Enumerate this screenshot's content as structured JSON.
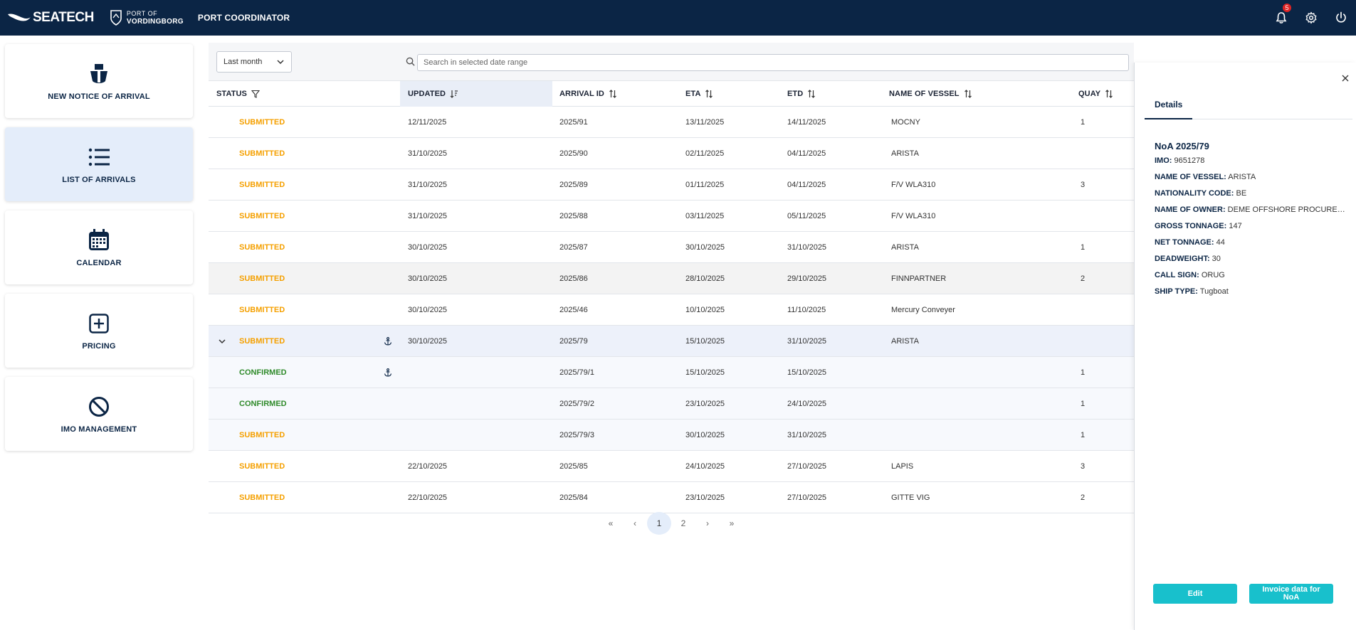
{
  "header": {
    "brand": "SEATECH",
    "port_logo_line1": "PORT OF",
    "port_logo_line2": "VORDINGBORG",
    "app_title": "PORT COORDINATOR",
    "notifications_count": "5",
    "icons": [
      "bell-icon",
      "gear-icon",
      "power-icon"
    ]
  },
  "sidebar": {
    "items": [
      {
        "label": "NEW NOTICE OF ARRIVAL",
        "icon": "ship-icon",
        "active": false
      },
      {
        "label": "LIST OF ARRIVALS",
        "icon": "list-icon",
        "active": true
      },
      {
        "label": "CALENDAR",
        "icon": "calendar-icon",
        "active": false
      },
      {
        "label": "PRICING",
        "icon": "plus-square-icon",
        "active": false
      },
      {
        "label": "IMO MANAGEMENT",
        "icon": "ban-icon",
        "active": false
      }
    ]
  },
  "toolbar": {
    "date_range": "Last month",
    "search_placeholder": "Search in selected date range"
  },
  "table": {
    "headers": {
      "status": "STATUS",
      "updated": "UPDATED",
      "arrival_id": "ARRIVAL ID",
      "eta": "ETA",
      "etd": "ETD",
      "vessel": "NAME OF VESSEL",
      "quay": "QUAY"
    },
    "rows": [
      {
        "status": "SUBMITTED",
        "updated": "12/11/2025",
        "arrival_id": "2025/91",
        "eta": "13/11/2025",
        "etd": "14/11/2025",
        "vessel": "MOCNY",
        "quay": "1"
      },
      {
        "status": "SUBMITTED",
        "updated": "31/10/2025",
        "arrival_id": "2025/90",
        "eta": "02/11/2025",
        "etd": "04/11/2025",
        "vessel": "ARISTA",
        "quay": ""
      },
      {
        "status": "SUBMITTED",
        "updated": "31/10/2025",
        "arrival_id": "2025/89",
        "eta": "01/11/2025",
        "etd": "04/11/2025",
        "vessel": "F/V WLA310",
        "quay": "3"
      },
      {
        "status": "SUBMITTED",
        "updated": "31/10/2025",
        "arrival_id": "2025/88",
        "eta": "03/11/2025",
        "etd": "05/11/2025",
        "vessel": "F/V WLA310",
        "quay": ""
      },
      {
        "status": "SUBMITTED",
        "updated": "30/10/2025",
        "arrival_id": "2025/87",
        "eta": "30/10/2025",
        "etd": "31/10/2025",
        "vessel": "ARISTA",
        "quay": "1"
      },
      {
        "status": "SUBMITTED",
        "updated": "30/10/2025",
        "arrival_id": "2025/86",
        "eta": "28/10/2025",
        "etd": "29/10/2025",
        "vessel": "FINNPARTNER",
        "quay": "2"
      },
      {
        "status": "SUBMITTED",
        "updated": "30/10/2025",
        "arrival_id": "2025/46",
        "eta": "10/10/2025",
        "etd": "11/10/2025",
        "vessel": "Mercury Conveyer",
        "quay": ""
      },
      {
        "status": "SUBMITTED",
        "updated": "30/10/2025",
        "arrival_id": "2025/79",
        "eta": "15/10/2025",
        "etd": "31/10/2025",
        "vessel": "ARISTA",
        "quay": ""
      },
      {
        "status": "CONFIRMED",
        "updated": "",
        "arrival_id": "2025/79/1",
        "eta": "15/10/2025",
        "etd": "15/10/2025",
        "vessel": "",
        "quay": "1"
      },
      {
        "status": "CONFIRMED",
        "updated": "",
        "arrival_id": "2025/79/2",
        "eta": "23/10/2025",
        "etd": "24/10/2025",
        "vessel": "",
        "quay": "1"
      },
      {
        "status": "SUBMITTED",
        "updated": "",
        "arrival_id": "2025/79/3",
        "eta": "30/10/2025",
        "etd": "31/10/2025",
        "vessel": "",
        "quay": "1"
      },
      {
        "status": "SUBMITTED",
        "updated": "22/10/2025",
        "arrival_id": "2025/85",
        "eta": "24/10/2025",
        "etd": "27/10/2025",
        "vessel": "LAPIS",
        "quay": "3"
      },
      {
        "status": "SUBMITTED",
        "updated": "22/10/2025",
        "arrival_id": "2025/84",
        "eta": "23/10/2025",
        "etd": "27/10/2025",
        "vessel": "GITTE VIG",
        "quay": "2"
      }
    ]
  },
  "pagination": {
    "first": "«",
    "prev": "‹",
    "pages": [
      "1",
      "2"
    ],
    "current": "1",
    "next": "›",
    "last": "»"
  },
  "details": {
    "tab": "Details",
    "title": "NoA 2025/79",
    "fields": [
      {
        "label": "IMO:",
        "value": "9651278"
      },
      {
        "label": "NAME OF VESSEL:",
        "value": "ARISTA"
      },
      {
        "label": "NATIONALITY CODE:",
        "value": "BE"
      },
      {
        "label": "NAME OF OWNER:",
        "value": "DEME OFFSHORE PROCUREME..."
      },
      {
        "label": "GROSS TONNAGE:",
        "value": "147"
      },
      {
        "label": "NET TONNAGE:",
        "value": "44"
      },
      {
        "label": "DEADWEIGHT:",
        "value": "30"
      },
      {
        "label": "CALL SIGN:",
        "value": "ORUG"
      },
      {
        "label": "SHIP TYPE:",
        "value": "Tugboat"
      }
    ],
    "edit_label": "Edit",
    "invoice_label": "Invoice data for NoA"
  },
  "colors": {
    "topbar": "#0b2545",
    "submitted": "#f5a000",
    "confirmed": "#2f8a2a",
    "accent": "#18c0cc"
  }
}
